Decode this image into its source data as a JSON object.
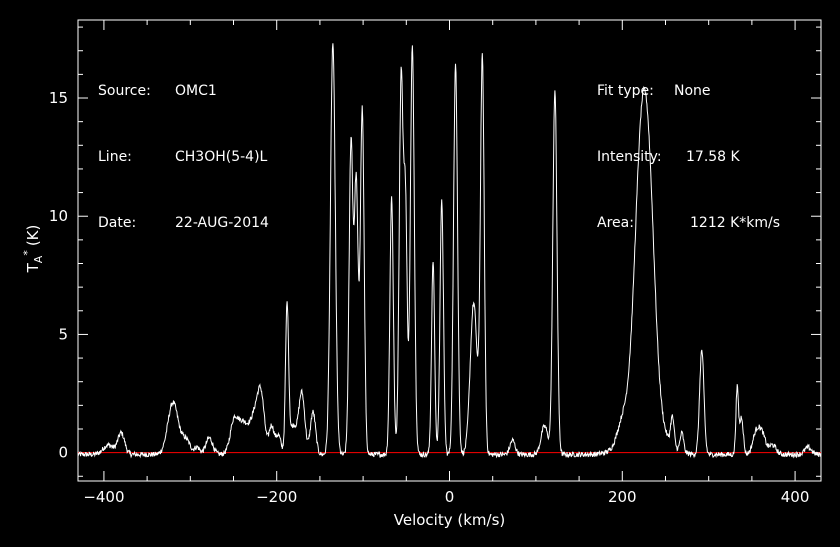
{
  "colors": {
    "background": "#000000",
    "foreground": "#ffffff",
    "baseline": "#ff0000"
  },
  "info_left": [
    {
      "key": "Source:",
      "value": "OMC1"
    },
    {
      "key": "Line:",
      "value": "CH3OH(5-4)L"
    },
    {
      "key": "Date:",
      "value": "22-AUG-2014"
    }
  ],
  "info_right": [
    {
      "key": "Fit type:",
      "value": "None"
    },
    {
      "key": "Intensity:",
      "value": "17.58 K"
    },
    {
      "key": "Area:",
      "value": "1212 K*km/s"
    }
  ],
  "chart_data": {
    "type": "line",
    "title": "",
    "xlabel": "Velocity (km/s)",
    "ylabel_main": "T",
    "ylabel_sub": "A",
    "ylabel_sup": "*",
    "ylabel_unit": "(K)",
    "xlim": [
      -430,
      430
    ],
    "ylim": [
      -1.2,
      18.3
    ],
    "x_ticks": [
      -400,
      -200,
      0,
      200,
      400
    ],
    "x_tick_labels": [
      "−400",
      "−200",
      "0",
      "200",
      "400"
    ],
    "y_ticks": [
      0,
      5,
      10,
      15
    ],
    "y_tick_labels": [
      "0",
      "5",
      "10",
      "15"
    ],
    "baseline_value": 0,
    "grid": false,
    "series": [
      {
        "components": [
          {
            "center": -395,
            "height": 0.4,
            "width": 6
          },
          {
            "center": -380,
            "height": 0.9,
            "width": 4
          },
          {
            "center": -320,
            "height": 2.2,
            "width": 6
          },
          {
            "center": -305,
            "height": 0.6,
            "width": 5
          },
          {
            "center": -292,
            "height": 0.3,
            "width": 3
          },
          {
            "center": -278,
            "height": 0.7,
            "width": 4
          },
          {
            "center": -250,
            "height": 0.9,
            "width": 4
          },
          {
            "center": -240,
            "height": 1.4,
            "width": 8
          },
          {
            "center": -225,
            "height": 1.4,
            "width": 5
          },
          {
            "center": -218,
            "height": 2.2,
            "width": 4
          },
          {
            "center": -206,
            "height": 1.2,
            "width": 3
          },
          {
            "center": -198,
            "height": 0.8,
            "width": 3
          },
          {
            "center": -188,
            "height": 6.2,
            "width": 1.8
          },
          {
            "center": -181,
            "height": 1.2,
            "width": 4
          },
          {
            "center": -171,
            "height": 2.6,
            "width": 3.5
          },
          {
            "center": -158,
            "height": 1.8,
            "width": 3
          },
          {
            "center": -135,
            "height": 17.4,
            "width": 2.8
          },
          {
            "center": -114,
            "height": 13.2,
            "width": 2.2
          },
          {
            "center": -108,
            "height": 11.5,
            "width": 2.2
          },
          {
            "center": -101,
            "height": 14.6,
            "width": 2.2
          },
          {
            "center": -67,
            "height": 10.9,
            "width": 2
          },
          {
            "center": -56,
            "height": 15.9,
            "width": 2.2
          },
          {
            "center": -51,
            "height": 10.5,
            "width": 2
          },
          {
            "center": -43,
            "height": 17.3,
            "width": 2.3
          },
          {
            "center": -19,
            "height": 8.2,
            "width": 1.8
          },
          {
            "center": -9,
            "height": 10.7,
            "width": 2
          },
          {
            "center": 7,
            "height": 16.6,
            "width": 2.3
          },
          {
            "center": 28,
            "height": 6.4,
            "width": 4
          },
          {
            "center": 38,
            "height": 16.6,
            "width": 2.2
          },
          {
            "center": 73,
            "height": 0.6,
            "width": 3
          },
          {
            "center": 110,
            "height": 1.2,
            "width": 4
          },
          {
            "center": 122,
            "height": 15.4,
            "width": 2.4
          },
          {
            "center": 200,
            "height": 0.8,
            "width": 6
          },
          {
            "center": 222,
            "height": 10.5,
            "width": 8
          },
          {
            "center": 232,
            "height": 6.0,
            "width": 7
          },
          {
            "center": 226,
            "height": 2.0,
            "width": 18
          },
          {
            "center": 258,
            "height": 1.2,
            "width": 2
          },
          {
            "center": 269,
            "height": 0.8,
            "width": 2
          },
          {
            "center": 292,
            "height": 4.4,
            "width": 2.5
          },
          {
            "center": 333,
            "height": 2.8,
            "width": 1.5
          },
          {
            "center": 338,
            "height": 1.6,
            "width": 2
          },
          {
            "center": 355,
            "height": 0.9,
            "width": 4
          },
          {
            "center": 362,
            "height": 0.8,
            "width": 4
          },
          {
            "center": 374,
            "height": 0.4,
            "width": 4
          },
          {
            "center": 415,
            "height": 0.3,
            "width": 4
          }
        ]
      }
    ]
  }
}
